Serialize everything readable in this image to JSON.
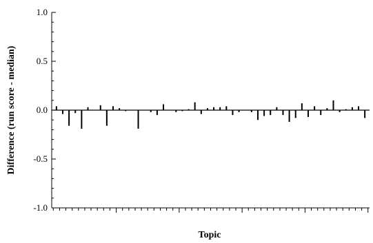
{
  "chart_data": {
    "type": "bar",
    "title": "",
    "xlabel": "Topic",
    "ylabel": "Difference (run score - median)",
    "ylim": [
      -1.0,
      1.0
    ],
    "yticks": [
      "1.0",
      "0.5",
      "0.0",
      "-0.5",
      "-1.0"
    ],
    "ytick_values": [
      1.0,
      0.5,
      0.0,
      -0.5,
      -1.0
    ],
    "grid": false,
    "x": [
      1,
      2,
      3,
      4,
      5,
      6,
      7,
      8,
      9,
      10,
      11,
      12,
      13,
      14,
      15,
      16,
      17,
      18,
      19,
      20,
      21,
      22,
      23,
      24,
      25,
      26,
      27,
      28,
      29,
      30,
      31,
      32,
      33,
      34,
      35,
      36,
      37,
      38,
      39,
      40,
      41,
      42,
      43,
      44,
      45,
      46,
      47,
      48,
      49,
      50
    ],
    "values": [
      0.04,
      -0.04,
      -0.16,
      -0.03,
      -0.19,
      0.03,
      0.0,
      0.05,
      -0.16,
      0.04,
      0.02,
      -0.01,
      0.0,
      -0.19,
      0.0,
      -0.02,
      -0.05,
      0.06,
      0.0,
      -0.02,
      -0.01,
      0.01,
      0.08,
      -0.04,
      0.02,
      0.03,
      0.03,
      0.04,
      -0.05,
      -0.02,
      0.0,
      -0.02,
      -0.1,
      -0.06,
      -0.05,
      0.03,
      -0.05,
      -0.12,
      -0.08,
      0.07,
      -0.07,
      0.04,
      -0.05,
      0.02,
      0.1,
      -0.02,
      0.01,
      0.03,
      0.04,
      -0.08
    ]
  }
}
